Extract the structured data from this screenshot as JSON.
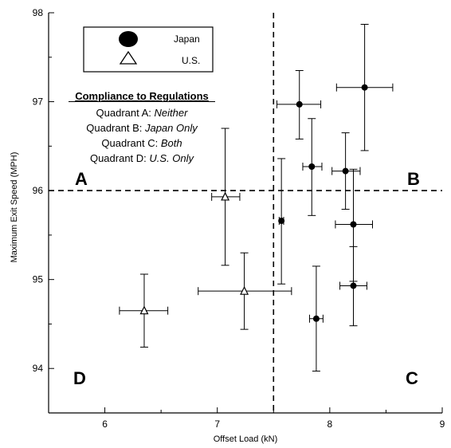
{
  "chart_data": {
    "type": "scatter",
    "xlabel": "Offset Load (kN)",
    "ylabel": "Maximum Exit Speed (MPH)",
    "xlim": [
      5.5,
      9.0
    ],
    "ylim": [
      93.5,
      98.0
    ],
    "x_ticks": [
      6,
      7,
      8,
      9
    ],
    "y_ticks": [
      94,
      95,
      96,
      97,
      98
    ],
    "x_tick_labels": [
      "6",
      "7",
      "8",
      "9"
    ],
    "y_tick_labels": [
      "94",
      "95",
      "96",
      "97",
      "98"
    ],
    "grid": false,
    "legend_position": "top-left",
    "reference_lines": {
      "vertical_x": 7.5,
      "horizontal_y": 96.0
    },
    "series": [
      {
        "name": "Japan",
        "marker": "circle-filled",
        "points": [
          {
            "x": 7.73,
            "y": 96.97,
            "xerr": [
              7.53,
              7.92
            ],
            "yerr": [
              96.58,
              97.35
            ]
          },
          {
            "x": 8.31,
            "y": 97.16,
            "xerr": [
              8.06,
              8.56
            ],
            "yerr": [
              96.45,
              97.87
            ]
          },
          {
            "x": 7.84,
            "y": 96.27,
            "xerr": [
              7.76,
              7.93
            ],
            "yerr": [
              95.72,
              96.81
            ]
          },
          {
            "x": 8.14,
            "y": 96.22,
            "xerr": [
              8.02,
              8.27
            ],
            "yerr": [
              95.79,
              96.65
            ]
          },
          {
            "x": 7.57,
            "y": 95.66,
            "xerr": [
              7.55,
              7.59
            ],
            "yerr": [
              94.95,
              96.36
            ]
          },
          {
            "x": 8.21,
            "y": 95.62,
            "xerr": [
              8.05,
              8.38
            ],
            "yerr": [
              94.98,
              96.24
            ]
          },
          {
            "x": 8.21,
            "y": 94.93,
            "xerr": [
              8.09,
              8.33
            ],
            "yerr": [
              94.48,
              95.37
            ]
          },
          {
            "x": 7.88,
            "y": 94.56,
            "xerr": [
              7.82,
              7.94
            ],
            "yerr": [
              93.97,
              95.15
            ]
          }
        ]
      },
      {
        "name": "U.S.",
        "marker": "triangle-open",
        "points": [
          {
            "x": 7.07,
            "y": 95.93,
            "xerr": [
              6.95,
              7.2
            ],
            "yerr": [
              95.16,
              96.7
            ]
          },
          {
            "x": 6.35,
            "y": 94.65,
            "xerr": [
              6.13,
              6.56
            ],
            "yerr": [
              94.24,
              95.06
            ]
          },
          {
            "x": 7.24,
            "y": 94.87,
            "xerr": [
              6.83,
              7.66
            ],
            "yerr": [
              94.44,
              95.3
            ]
          }
        ]
      }
    ],
    "annotations": {
      "quadrant_letters": {
        "A": "A",
        "B": "B",
        "C": "C",
        "D": "D"
      },
      "compliance": {
        "title": "Compliance to Regulations",
        "lines": [
          {
            "prefix": "Quadrant A: ",
            "value": "Neither"
          },
          {
            "prefix": "Quadrant B: ",
            "value": "Japan Only"
          },
          {
            "prefix": "Quadrant C: ",
            "value": "Both"
          },
          {
            "prefix": "Quadrant D: ",
            "value": "U.S. Only"
          }
        ]
      }
    },
    "colors": {
      "ink": "#000000",
      "background": "#ffffff"
    }
  }
}
